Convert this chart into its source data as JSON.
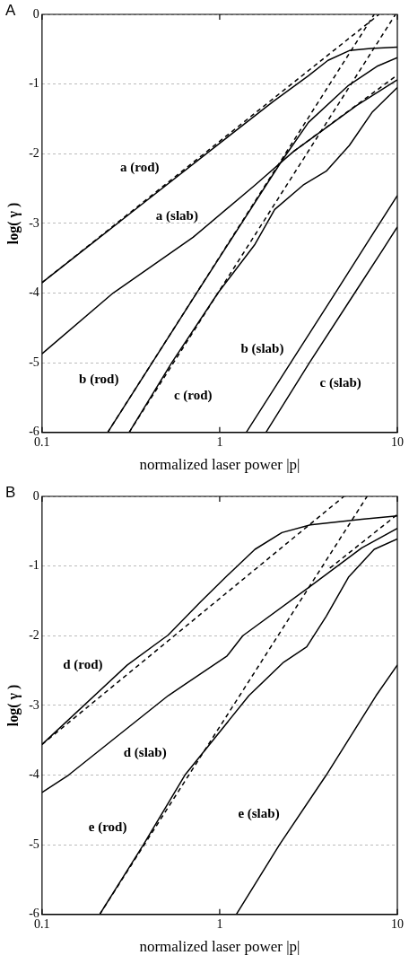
{
  "chart_data": [
    {
      "type": "line",
      "title": "A",
      "xlabel": "normalized laser power |p|",
      "ylabel": "log( γ )",
      "log": "x",
      "grid": "y",
      "legend": false,
      "marker": "none",
      "xlim": [
        0.1,
        10
      ],
      "xticks": [
        0.1,
        1,
        10
      ],
      "ylim": [
        -6,
        0
      ],
      "yticks": [
        0,
        -1,
        -2,
        -3,
        -4,
        -5,
        -6
      ],
      "series": [
        {
          "color": "#000000",
          "line_style": "solid",
          "x": [
            0.1,
            0.316,
            1,
            2,
            3.16,
            4.07,
            5.37,
            7.08,
            10
          ],
          "values": [
            -3.85,
            -2.85,
            -1.85,
            -1.25,
            -0.88,
            -0.66,
            -0.52,
            -0.49,
            -0.47
          ]
        },
        {
          "color": "#000000",
          "line_style": "dashed",
          "x": [
            0.1,
            7.9
          ],
          "values": [
            -3.85,
            0
          ]
        },
        {
          "color": "#000000",
          "line_style": "solid",
          "x": [
            0.1,
            0.251,
            0.708,
            1.58,
            2.6,
            5.89,
            10
          ],
          "values": [
            -4.87,
            -4.0,
            -3.2,
            -2.45,
            -1.97,
            -1.31,
            -0.94
          ]
        },
        {
          "color": "#000000",
          "line_style": "dashed",
          "x": [
            2.6,
            10
          ],
          "values": [
            -1.97,
            -0.87
          ]
        },
        {
          "color": "#000000",
          "line_style": "solid",
          "x": [
            0.234,
            0.741,
            2.24,
            3.16,
            5.25,
            7.76,
            10
          ],
          "values": [
            -6,
            -4,
            -2.1,
            -1.55,
            -1.03,
            -0.74,
            -0.62
          ]
        },
        {
          "color": "#000000",
          "line_style": "dashed",
          "x": [
            0.234,
            7.41
          ],
          "values": [
            -6,
            0
          ]
        },
        {
          "color": "#000000",
          "line_style": "solid",
          "x": [
            0.309,
            0.537,
            0.977,
            1.58,
            2.04,
            2.95,
            3.98,
            5.37,
            7.24,
            10
          ],
          "values": [
            -6,
            -5,
            -4,
            -3.3,
            -2.8,
            -2.45,
            -2.25,
            -1.88,
            -1.4,
            -1.05
          ]
        },
        {
          "color": "#000000",
          "line_style": "dashed",
          "x": [
            0.309,
            9.77
          ],
          "values": [
            -6,
            0
          ]
        },
        {
          "color": "#000000",
          "line_style": "solid",
          "x": [
            1.41,
            2.51,
            4.47,
            7.08,
            10
          ],
          "values": [
            -6,
            -5,
            -4,
            -3.2,
            -2.6
          ]
        },
        {
          "color": "#000000",
          "line_style": "solid",
          "x": [
            1.82,
            3.2,
            5.75,
            8.32,
            10
          ],
          "values": [
            -6,
            -5,
            -4,
            -3.37,
            -3.05
          ]
        }
      ],
      "annotations": [
        "a (rod)",
        "a (slab)",
        "b (rod)",
        "c (rod)",
        "b (slab)",
        "c (slab)"
      ]
    },
    {
      "type": "line",
      "title": "B",
      "xlabel": "normalized laser power |p|",
      "ylabel": "log( γ )",
      "log": "x",
      "grid": "y",
      "legend": false,
      "marker": "none",
      "xlim": [
        0.1,
        10
      ],
      "xticks": [
        0.1,
        1,
        10
      ],
      "ylim": [
        -6,
        0
      ],
      "yticks": [
        0,
        -1,
        -2,
        -3,
        -4,
        -5,
        -6
      ],
      "series": [
        {
          "color": "#000000",
          "line_style": "solid",
          "x": [
            0.1,
            0.302,
            0.513,
            0.783,
            1.1,
            1.58,
            2.24,
            3.24,
            6.31,
            10
          ],
          "values": [
            -3.56,
            -2.42,
            -1.99,
            -1.51,
            -1.14,
            -0.76,
            -0.52,
            -0.41,
            -0.33,
            -0.28
          ]
        },
        {
          "color": "#000000",
          "line_style": "dashed",
          "x": [
            0.1,
            5.01
          ],
          "values": [
            -3.56,
            0
          ]
        },
        {
          "color": "#000000",
          "line_style": "solid",
          "x": [
            0.1,
            0.141,
            0.513,
            1.1,
            1.35,
            3.24,
            6.31,
            10
          ],
          "values": [
            -4.25,
            -4.0,
            -2.86,
            -2.29,
            -2.0,
            -1.29,
            -0.74,
            -0.46
          ]
        },
        {
          "color": "#000000",
          "line_style": "dashed",
          "x": [
            4.17,
            10
          ],
          "values": [
            -1.03,
            -0.26
          ]
        },
        {
          "color": "#000000",
          "line_style": "solid",
          "x": [
            0.211,
            0.372,
            0.637,
            1.46,
            2.29,
            3.09,
            3.98,
            5.31,
            7.41,
            10
          ],
          "values": [
            -6,
            -5,
            -4,
            -2.86,
            -2.38,
            -2.16,
            -1.72,
            -1.16,
            -0.76,
            -0.61
          ]
        },
        {
          "color": "#000000",
          "line_style": "dashed",
          "x": [
            0.211,
            6.76
          ],
          "values": [
            -6,
            0
          ]
        },
        {
          "color": "#000000",
          "line_style": "solid",
          "x": [
            1.24,
            2.17,
            3.98,
            7.59,
            10
          ],
          "values": [
            -6,
            -5,
            -4,
            -2.86,
            -2.42
          ]
        }
      ],
      "annotations": [
        "d (rod)",
        "d (slab)",
        "e (rod)",
        "e (slab)"
      ]
    }
  ]
}
